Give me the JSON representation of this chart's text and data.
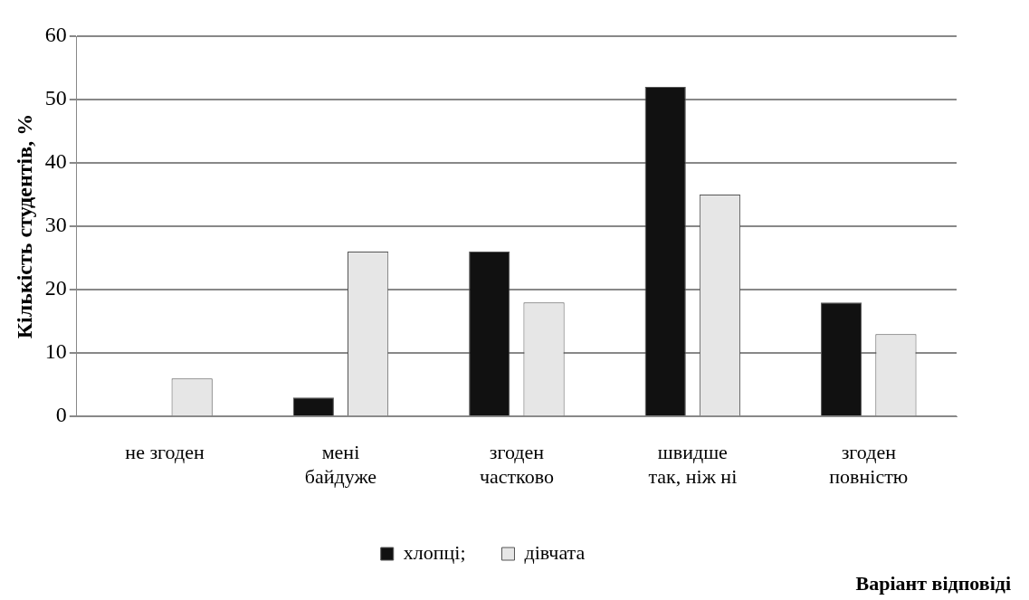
{
  "chart_data": {
    "type": "bar",
    "ylabel": "Кількість студентів, %",
    "xlabel": "Варіант відповіді",
    "categories": [
      "не згоден",
      "мені байдуже",
      "згоден частково",
      "швидше так, ніж ні",
      "згоден повністю"
    ],
    "series": [
      {
        "name": "хлопці;",
        "color": "#111111",
        "values": [
          0,
          3,
          26,
          52,
          18
        ]
      },
      {
        "name": "дівчата",
        "color": "#e6e6e6",
        "values": [
          6,
          26,
          18,
          35,
          13
        ]
      }
    ],
    "ylim": [
      0,
      60
    ],
    "yticks": [
      0,
      10,
      20,
      30,
      40,
      50,
      60
    ],
    "grid": "y",
    "legend": "bottom"
  }
}
